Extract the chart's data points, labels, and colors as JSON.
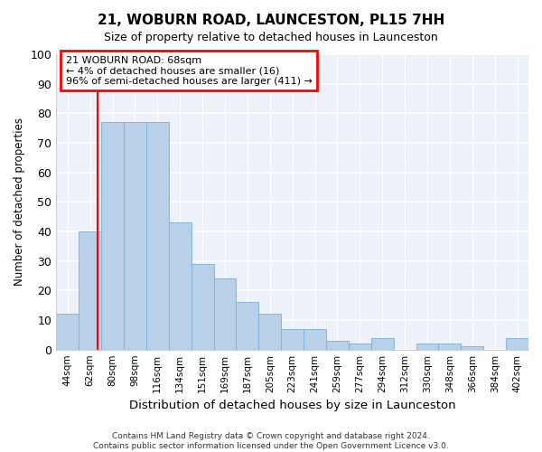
{
  "title": "21, WOBURN ROAD, LAUNCESTON, PL15 7HH",
  "subtitle": "Size of property relative to detached houses in Launceston",
  "xlabel": "Distribution of detached houses by size in Launceston",
  "ylabel": "Number of detached properties",
  "categories": [
    "44sqm",
    "62sqm",
    "80sqm",
    "98sqm",
    "116sqm",
    "134sqm",
    "151sqm",
    "169sqm",
    "187sqm",
    "205sqm",
    "223sqm",
    "241sqm",
    "259sqm",
    "277sqm",
    "294sqm",
    "312sqm",
    "330sqm",
    "348sqm",
    "366sqm",
    "384sqm",
    "402sqm"
  ],
  "values": [
    12,
    40,
    77,
    77,
    77,
    43,
    29,
    24,
    16,
    12,
    7,
    7,
    3,
    2,
    4,
    0,
    2,
    2,
    1,
    0,
    4
  ],
  "bar_color": "#b8d0e8",
  "bar_edge_color": "#7aadd4",
  "background_color": "#edf2fa",
  "grid_color": "#ffffff",
  "red_line_x": 1.33,
  "annotation_text": "21 WOBURN ROAD: 68sqm\n← 4% of detached houses are smaller (16)\n96% of semi-detached houses are larger (411) →",
  "ylim": [
    0,
    100
  ],
  "yticks": [
    0,
    10,
    20,
    30,
    40,
    50,
    60,
    70,
    80,
    90,
    100
  ],
  "footnote_line1": "Contains HM Land Registry data © Crown copyright and database right 2024.",
  "footnote_line2": "Contains public sector information licensed under the Open Government Licence v3.0."
}
